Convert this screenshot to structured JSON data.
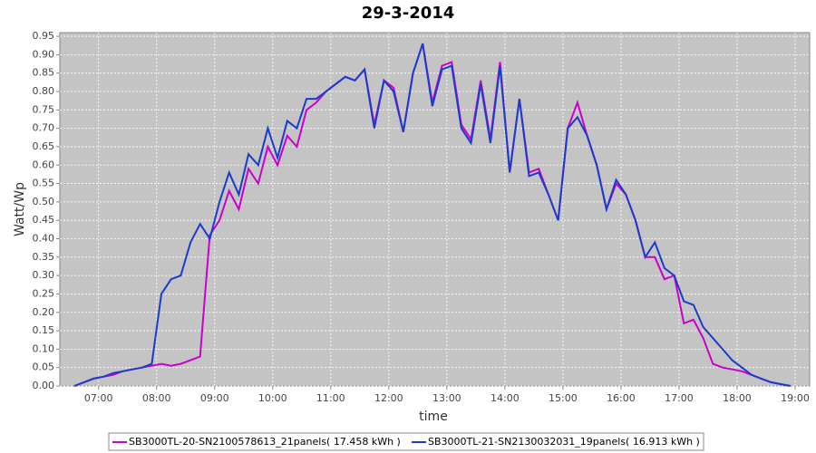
{
  "chart_data": {
    "type": "line",
    "title": "29-3-2014",
    "x_label": "time",
    "y_label": "Watt/Wp",
    "x": [
      "06:35",
      "06:45",
      "06:55",
      "07:05",
      "07:15",
      "07:25",
      "07:35",
      "07:45",
      "07:55",
      "08:05",
      "08:15",
      "08:25",
      "08:35",
      "08:45",
      "08:55",
      "09:05",
      "09:15",
      "09:25",
      "09:35",
      "09:45",
      "09:55",
      "10:05",
      "10:15",
      "10:25",
      "10:35",
      "10:45",
      "10:55",
      "11:05",
      "11:15",
      "11:25",
      "11:35",
      "11:45",
      "11:55",
      "12:05",
      "12:15",
      "12:25",
      "12:35",
      "12:45",
      "12:55",
      "13:05",
      "13:15",
      "13:25",
      "13:35",
      "13:45",
      "13:55",
      "14:05",
      "14:15",
      "14:25",
      "14:35",
      "14:45",
      "14:55",
      "15:05",
      "15:15",
      "15:25",
      "15:35",
      "15:45",
      "15:55",
      "16:05",
      "16:15",
      "16:25",
      "16:35",
      "16:45",
      "16:55",
      "17:05",
      "17:15",
      "17:25",
      "17:35",
      "17:45",
      "17:55",
      "18:05",
      "18:15",
      "18:25",
      "18:35",
      "18:45",
      "18:55"
    ],
    "series": [
      {
        "name": "SB3000TL-20-SN2100578613_21panels( 17.458 kWh )",
        "color": "#cc00cc",
        "values": [
          0.0,
          0.01,
          0.02,
          0.025,
          0.03,
          0.04,
          0.045,
          0.05,
          0.055,
          0.06,
          0.055,
          0.06,
          0.07,
          0.08,
          0.41,
          0.45,
          0.53,
          0.48,
          0.59,
          0.55,
          0.65,
          0.6,
          0.68,
          0.65,
          0.75,
          0.77,
          0.8,
          0.82,
          0.84,
          0.83,
          0.86,
          0.71,
          0.83,
          0.81,
          0.69,
          0.85,
          0.93,
          0.77,
          0.87,
          0.88,
          0.71,
          0.67,
          0.83,
          0.67,
          0.88,
          0.58,
          0.78,
          0.58,
          0.59,
          0.52,
          0.45,
          0.7,
          0.77,
          0.68,
          0.6,
          0.48,
          0.55,
          0.52,
          0.45,
          0.35,
          0.35,
          0.29,
          0.3,
          0.17,
          0.18,
          0.13,
          0.06,
          0.05,
          0.045,
          0.04,
          0.03,
          0.02,
          0.01,
          0.005,
          0.0
        ]
      },
      {
        "name": "SB3000TL-21-SN2130032031_19panels( 16.913 kWh )",
        "color": "#1a3ccc",
        "values": [
          0.0,
          0.01,
          0.02,
          0.025,
          0.035,
          0.04,
          0.045,
          0.05,
          0.06,
          0.25,
          0.29,
          0.3,
          0.39,
          0.44,
          0.4,
          0.5,
          0.58,
          0.52,
          0.63,
          0.6,
          0.7,
          0.62,
          0.72,
          0.7,
          0.78,
          0.78,
          0.8,
          0.82,
          0.84,
          0.83,
          0.86,
          0.7,
          0.83,
          0.8,
          0.69,
          0.85,
          0.93,
          0.76,
          0.86,
          0.87,
          0.7,
          0.66,
          0.82,
          0.66,
          0.87,
          0.58,
          0.78,
          0.57,
          0.58,
          0.52,
          0.45,
          0.7,
          0.73,
          0.68,
          0.6,
          0.48,
          0.56,
          0.52,
          0.45,
          0.35,
          0.39,
          0.32,
          0.3,
          0.23,
          0.22,
          0.16,
          0.13,
          0.1,
          0.07,
          0.05,
          0.03,
          0.02,
          0.01,
          0.005,
          0.0
        ]
      }
    ],
    "xlim": [
      "06:20",
      "19:15"
    ],
    "xticks": [
      "07:00",
      "08:00",
      "09:00",
      "10:00",
      "11:00",
      "12:00",
      "13:00",
      "14:00",
      "15:00",
      "16:00",
      "17:00",
      "18:00",
      "19:00"
    ],
    "ylim": [
      0,
      0.96
    ],
    "yticks": [
      {
        "value": 0,
        "label": "0.00"
      },
      {
        "value": 0.05,
        "label": "0.05"
      },
      {
        "value": 0.1,
        "label": "0.10"
      },
      {
        "value": 0.15,
        "label": "0.15"
      },
      {
        "value": 0.2,
        "label": "0.20"
      },
      {
        "value": 0.25,
        "label": "0.25"
      },
      {
        "value": 0.3,
        "label": "0.30"
      },
      {
        "value": 0.35,
        "label": "0.35"
      },
      {
        "value": 0.4,
        "label": "0.40"
      },
      {
        "value": 0.45,
        "label": "0.45"
      },
      {
        "value": 0.5,
        "label": "0.50"
      },
      {
        "value": 0.55,
        "label": "0.55"
      },
      {
        "value": 0.6,
        "label": "0.60"
      },
      {
        "value": 0.65,
        "label": "0.65"
      },
      {
        "value": 0.7,
        "label": "0.70"
      },
      {
        "value": 0.75,
        "label": "0.75"
      },
      {
        "value": 0.8,
        "label": "0.80"
      },
      {
        "value": 0.85,
        "label": "0.85"
      },
      {
        "value": 0.9,
        "label": "0.90"
      },
      {
        "value": 0.95,
        "label": "0.95"
      }
    ],
    "grid": true
  }
}
